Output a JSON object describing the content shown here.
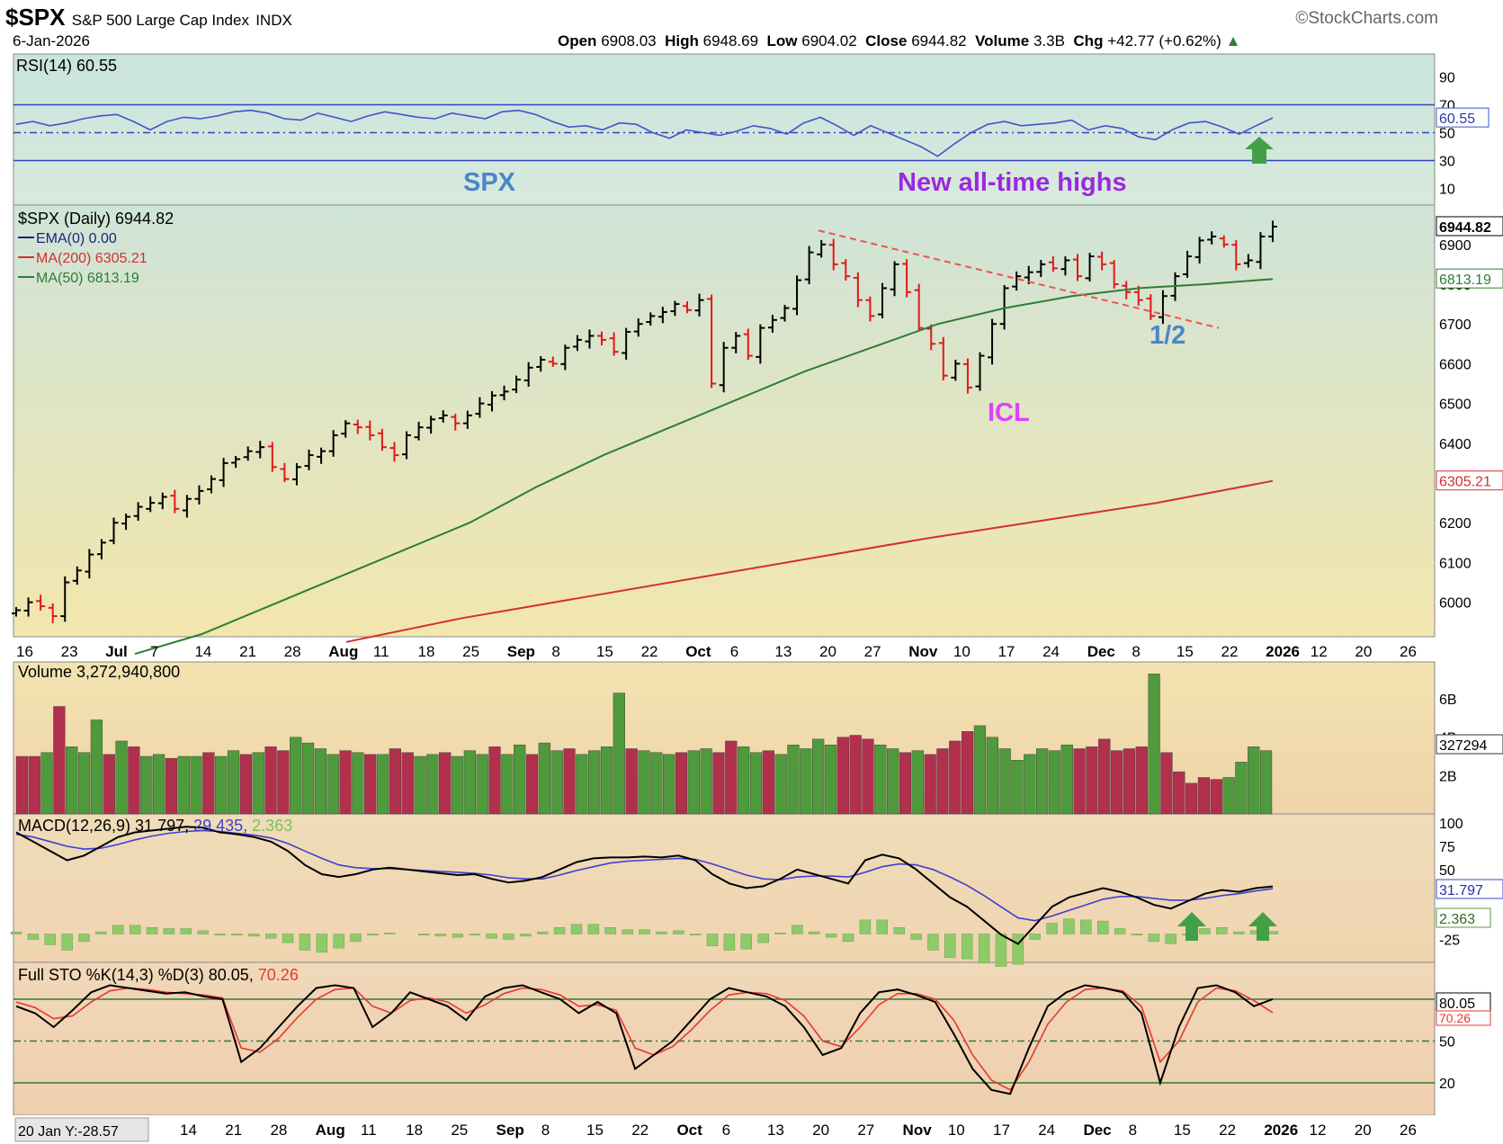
{
  "header": {
    "symbol": "$SPX",
    "name": "S&P 500 Large Cap Index",
    "exchange": "INDX",
    "watermark": "©StockCharts.com",
    "date": "6-Jan-2026",
    "open_label": "Open",
    "open": "6908.03",
    "high_label": "High",
    "high": "6948.69",
    "low_label": "Low",
    "low": "6904.02",
    "close_label": "Close",
    "close": "6944.82",
    "volume_label": "Volume",
    "volume": "3.3B",
    "chg_label": "Chg",
    "chg": "+42.77 (+0.62%)"
  },
  "chart_data": [
    {
      "panel": "rsi",
      "type": "line",
      "title": "RSI(14) 60.55",
      "current": "60.55",
      "y_ticks": [
        "90",
        "70",
        "50",
        "30",
        "10"
      ],
      "ylim": [
        0,
        100
      ],
      "reference_lines": [
        70,
        50,
        30
      ],
      "values": [
        56,
        58,
        55,
        57,
        60,
        62,
        63,
        58,
        52,
        58,
        61,
        60,
        62,
        65,
        66,
        64,
        60,
        59,
        64,
        61,
        58,
        62,
        65,
        63,
        61,
        60,
        64,
        62,
        60,
        65,
        66,
        63,
        58,
        54,
        55,
        52,
        57,
        56,
        50,
        46,
        52,
        50,
        48,
        51,
        55,
        53,
        49,
        57,
        61,
        55,
        48,
        55,
        50,
        45,
        40,
        33,
        42,
        50,
        56,
        58,
        55,
        56,
        57,
        59,
        52,
        55,
        53,
        47,
        45,
        52,
        57,
        58,
        54,
        49,
        55,
        60.55
      ],
      "annotations": {
        "left": "SPX",
        "right": "New all-time highs"
      },
      "colors": {
        "line": "#3f55c6",
        "fill": "#cfe5dd",
        "bands": "#3344bb"
      }
    },
    {
      "panel": "price",
      "type": "ohlc",
      "title": "$SPX (Daily) 6944.82",
      "legend": [
        {
          "label": "EMA(0) 0.00",
          "color": "#1a237e"
        },
        {
          "label": "MA(200) 6305.21",
          "color": "#d32f2f"
        },
        {
          "label": "MA(50) 6813.19",
          "color": "#2e7d32"
        }
      ],
      "y_ticks": [
        "6900",
        "6800",
        "6700",
        "6600",
        "6500",
        "6400",
        "6300",
        "6200",
        "6100",
        "6000"
      ],
      "ylim": [
        5920,
        6990
      ],
      "right_labels": [
        "6944.82",
        "6813.19",
        "6305.21"
      ],
      "closes": [
        5980,
        6000,
        5990,
        5965,
        6050,
        6080,
        6120,
        6150,
        6200,
        6215,
        6240,
        6250,
        6265,
        6235,
        6260,
        6280,
        6310,
        6350,
        6360,
        6380,
        6390,
        6340,
        6310,
        6340,
        6370,
        6380,
        6420,
        6450,
        6440,
        6420,
        6390,
        6370,
        6420,
        6440,
        6460,
        6470,
        6450,
        6470,
        6500,
        6520,
        6530,
        6560,
        6590,
        6610,
        6600,
        6640,
        6660,
        6670,
        6660,
        6630,
        6680,
        6700,
        6720,
        6730,
        6750,
        6735,
        6760,
        6550,
        6640,
        6670,
        6620,
        6690,
        6710,
        6740,
        6810,
        6880,
        6900,
        6850,
        6820,
        6760,
        6720,
        6790,
        6850,
        6780,
        6690,
        6650,
        6570,
        6600,
        6540,
        6620,
        6700,
        6790,
        6820,
        6830,
        6850,
        6840,
        6860,
        6820,
        6870,
        6850,
        6800,
        6780,
        6760,
        6720,
        6770,
        6820,
        6870,
        6910,
        6920,
        6900,
        6850,
        6860,
        6920,
        6944.82
      ],
      "ma50": [
        5870,
        5920,
        5990,
        6060,
        6130,
        6200,
        6290,
        6370,
        6440,
        6510,
        6580,
        6640,
        6700,
        6740,
        6770,
        6790,
        6800,
        6813.19
      ],
      "ma200": [
        5900,
        5960,
        6010,
        6060,
        6110,
        6160,
        6205,
        6250,
        6305.21
      ],
      "annotations": [
        {
          "text": "ICL",
          "color": "#e040fb"
        },
        {
          "text": "1/2",
          "color": "#4a86c8"
        }
      ],
      "trendline": {
        "from": 6935,
        "to": 6690,
        "style": "dashed",
        "color": "#ef5350"
      }
    },
    {
      "panel": "volume",
      "type": "bar",
      "title": "Volume 3,272,940,800",
      "current": "327294",
      "y_ticks": [
        "6B",
        "4B",
        "2B"
      ],
      "ylim": [
        0,
        7.5
      ],
      "values_billions": [
        3.0,
        3.0,
        3.2,
        5.6,
        3.5,
        3.2,
        4.9,
        3.1,
        3.8,
        3.5,
        3.0,
        3.1,
        2.9,
        3.0,
        3.0,
        3.2,
        3.0,
        3.3,
        3.1,
        3.2,
        3.5,
        3.3,
        4.0,
        3.7,
        3.4,
        3.1,
        3.3,
        3.2,
        3.1,
        3.1,
        3.4,
        3.2,
        3.0,
        3.1,
        3.2,
        3.0,
        3.3,
        3.1,
        3.5,
        3.1,
        3.6,
        3.1,
        3.7,
        3.3,
        3.4,
        3.1,
        3.3,
        3.5,
        6.3,
        3.4,
        3.3,
        3.2,
        3.1,
        3.2,
        3.3,
        3.4,
        3.2,
        3.8,
        3.5,
        3.2,
        3.3,
        3.1,
        3.6,
        3.4,
        3.9,
        3.6,
        4.0,
        4.1,
        3.9,
        3.6,
        3.4,
        3.2,
        3.3,
        3.1,
        3.4,
        3.8,
        4.3,
        4.6,
        4.0,
        3.4,
        2.8,
        3.1,
        3.4,
        3.3,
        3.6,
        3.4,
        3.5,
        3.9,
        3.3,
        3.4,
        3.5,
        7.3,
        3.2,
        2.2,
        1.6,
        1.9,
        1.8,
        1.9,
        2.7,
        3.5,
        3.3
      ],
      "down_days": [
        0,
        1,
        3,
        7,
        9,
        12,
        15,
        18,
        20,
        21,
        26,
        28,
        30,
        31,
        34,
        38,
        41,
        44,
        49,
        53,
        56,
        57,
        60,
        66,
        67,
        68,
        71,
        73,
        74,
        75,
        76,
        85,
        86,
        87,
        88,
        89,
        90,
        92,
        93,
        94,
        95,
        96
      ],
      "colors": {
        "up": "#4f9a3c",
        "down": "#b0304e"
      }
    },
    {
      "panel": "macd",
      "type": "line",
      "title": "MACD(12,26,9)",
      "values_label": "31.797",
      "signal_label": "29.435",
      "hist_label": "2.363",
      "y_ticks": [
        "100",
        "75",
        "50",
        "-25"
      ],
      "right_labels": [
        "31.797",
        "2.363"
      ],
      "ylim": [
        -45,
        105
      ],
      "macd": [
        90,
        80,
        70,
        60,
        65,
        75,
        85,
        90,
        92,
        94,
        96,
        95,
        90,
        88,
        85,
        80,
        70,
        55,
        45,
        42,
        45,
        50,
        52,
        50,
        48,
        46,
        44,
        45,
        40,
        36,
        38,
        42,
        50,
        58,
        62,
        63,
        63,
        64,
        63,
        65,
        60,
        45,
        35,
        30,
        32,
        40,
        50,
        45,
        40,
        35,
        60,
        66,
        62,
        50,
        35,
        20,
        10,
        -5,
        -20,
        -30,
        -10,
        10,
        20,
        25,
        30,
        26,
        20,
        12,
        8,
        16,
        24,
        28,
        26,
        30,
        31.797
      ],
      "signal": [
        88,
        85,
        80,
        75,
        72,
        73,
        77,
        82,
        86,
        89,
        91,
        92,
        91,
        89,
        87,
        84,
        78,
        70,
        62,
        55,
        52,
        51,
        51,
        50,
        49,
        48,
        47,
        46,
        44,
        41,
        40,
        40,
        44,
        49,
        53,
        57,
        59,
        60,
        61,
        62,
        61,
        56,
        50,
        44,
        40,
        39,
        42,
        43,
        43,
        42,
        47,
        53,
        56,
        55,
        50,
        42,
        33,
        22,
        10,
        -2,
        -5,
        0,
        6,
        12,
        18,
        21,
        21,
        19,
        17,
        17,
        19,
        22,
        24,
        27,
        29.435
      ],
      "colors": {
        "macd": "#000000",
        "signal": "#3f3fd0",
        "hist": "#8fca6a"
      }
    },
    {
      "panel": "stochastic",
      "type": "line",
      "title": "Full STO %K(14,3) %D(3)",
      "k_label": "80.05",
      "d_label": "70.26",
      "y_ticks": [
        "50",
        "20"
      ],
      "right_labels": [
        "80.05",
        "70.26"
      ],
      "ylim": [
        0,
        100
      ],
      "reference_lines": [
        80,
        50,
        20
      ],
      "k": [
        75,
        70,
        60,
        72,
        85,
        90,
        88,
        86,
        84,
        85,
        82,
        80,
        35,
        45,
        60,
        75,
        88,
        90,
        88,
        60,
        70,
        85,
        80,
        75,
        65,
        82,
        88,
        90,
        85,
        80,
        70,
        78,
        70,
        30,
        40,
        50,
        65,
        80,
        88,
        85,
        82,
        75,
        60,
        40,
        45,
        70,
        85,
        87,
        83,
        78,
        55,
        30,
        15,
        12,
        45,
        75,
        85,
        90,
        88,
        85,
        70,
        20,
        60,
        88,
        90,
        85,
        75,
        80.05
      ],
      "d": [
        78,
        74,
        66,
        68,
        78,
        86,
        88,
        87,
        85,
        84,
        83,
        81,
        45,
        42,
        52,
        67,
        80,
        87,
        88,
        75,
        70,
        79,
        81,
        78,
        70,
        76,
        84,
        88,
        87,
        83,
        75,
        76,
        72,
        45,
        40,
        46,
        58,
        72,
        83,
        85,
        84,
        79,
        68,
        50,
        46,
        60,
        76,
        84,
        84,
        80,
        65,
        40,
        22,
        15,
        35,
        62,
        78,
        87,
        88,
        86,
        75,
        35,
        50,
        78,
        88,
        86,
        79,
        70.26
      ],
      "colors": {
        "k": "#000000",
        "d": "#e53935"
      }
    }
  ],
  "x_axis_top": [
    "16",
    "23",
    "Jul",
    "7",
    "14",
    "21",
    "28",
    "Aug",
    "11",
    "18",
    "25",
    "Sep",
    "8",
    "15",
    "22",
    "Oct",
    "6",
    "13",
    "20",
    "27",
    "Nov",
    "10",
    "17",
    "24",
    "Dec",
    "8",
    "15",
    "22",
    "2026",
    "12",
    "20",
    "26"
  ],
  "x_axis_bottom": [
    "14",
    "21",
    "28",
    "Aug",
    "11",
    "18",
    "25",
    "Sep",
    "8",
    "15",
    "22",
    "Oct",
    "6",
    "13",
    "20",
    "27",
    "Nov",
    "10",
    "17",
    "24",
    "Dec",
    "8",
    "15",
    "22",
    "2026",
    "12",
    "20",
    "26"
  ],
  "footer_note": "20 Jan Y:-28.57",
  "x_axis_bold": [
    "Jul",
    "Aug",
    "Sep",
    "Oct",
    "Nov",
    "Dec",
    "2026"
  ]
}
